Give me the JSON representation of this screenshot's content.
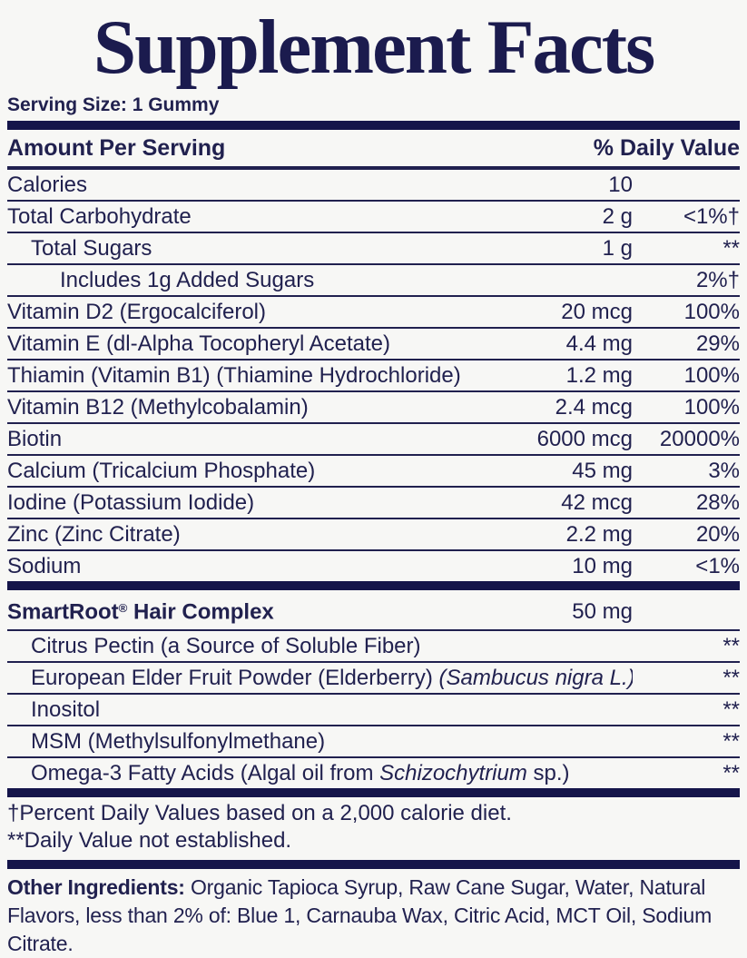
{
  "label": {
    "title": "Supplement Facts",
    "serving_size": "Serving Size: 1 Gummy",
    "header": {
      "amount_col": "Amount Per Serving",
      "dv_col": "% Daily Value"
    },
    "colors": {
      "text_navy": "#21214f",
      "bar_navy": "#15154a",
      "background": "#f7f7f5"
    },
    "rows": [
      {
        "name": "Calories",
        "amount": "10",
        "dv": "",
        "indent": 0
      },
      {
        "name": "Total Carbohydrate",
        "amount": "2 g",
        "dv": "<1%†",
        "indent": 0
      },
      {
        "name": "Total Sugars",
        "amount": "1 g",
        "dv": "**",
        "indent": 1
      },
      {
        "name": "Includes 1g Added Sugars",
        "amount": "",
        "dv": "2%†",
        "indent": 2
      },
      {
        "name": "Vitamin D2 (Ergocalciferol)",
        "amount": "20 mcg",
        "dv": "100%",
        "indent": 0
      },
      {
        "name": "Vitamin E (dl-Alpha Tocopheryl Acetate)",
        "amount": "4.4 mg",
        "dv": "29%",
        "indent": 0
      },
      {
        "name": "Thiamin (Vitamin B1) (Thiamine Hydrochloride)",
        "amount": "1.2 mg",
        "dv": "100%",
        "indent": 0
      },
      {
        "name": "Vitamin B12 (Methylcobalamin)",
        "amount": "2.4 mcg",
        "dv": "100%",
        "indent": 0
      },
      {
        "name": "Biotin",
        "amount": "6000 mcg",
        "dv": "20000%",
        "indent": 0
      },
      {
        "name": "Calcium (Tricalcium Phosphate)",
        "amount": "45 mg",
        "dv": "3%",
        "indent": 0
      },
      {
        "name": "Iodine (Potassium Iodide)",
        "amount": "42 mcg",
        "dv": "28%",
        "indent": 0
      },
      {
        "name": "Zinc (Zinc Citrate)",
        "amount": "2.2 mg",
        "dv": "20%",
        "indent": 0
      },
      {
        "name": "Sodium",
        "amount": "10 mg",
        "dv": "<1%",
        "indent": 0
      }
    ],
    "complex_header": {
      "brand": "SmartRoot",
      "reg": "®",
      "rest": " Hair Complex",
      "amount": "50 mg"
    },
    "complex_rows": [
      {
        "name": "Citrus Pectin (a Source of Soluble Fiber)",
        "dv": "**",
        "indent": 1
      },
      {
        "name": "European Elder Fruit Powder (Elderberry) ",
        "name_italic": "(Sambucus nigra L.)",
        "dv": "**",
        "indent": 1
      },
      {
        "name": "Inositol",
        "dv": "**",
        "indent": 1
      },
      {
        "name": "MSM (Methylsulfonylmethane)",
        "dv": "**",
        "indent": 1
      },
      {
        "name": "Omega-3 Fatty Acids (Algal oil from ",
        "name_italic": "Schizochytrium",
        "name_after": " sp.)",
        "dv": "**",
        "indent": 1
      }
    ],
    "footnotes": {
      "line1": "†Percent Daily Values based on a 2,000 calorie diet.",
      "line2": "**Daily Value not established."
    },
    "other_ingredients": {
      "label": "Other Ingredients:",
      "text": " Organic Tapioca Syrup, Raw Cane Sugar, Water, Natural Flavors, less than 2% of: Blue 1, Carnauba Wax, Citric Acid, MCT Oil, Sodium Citrate."
    }
  }
}
